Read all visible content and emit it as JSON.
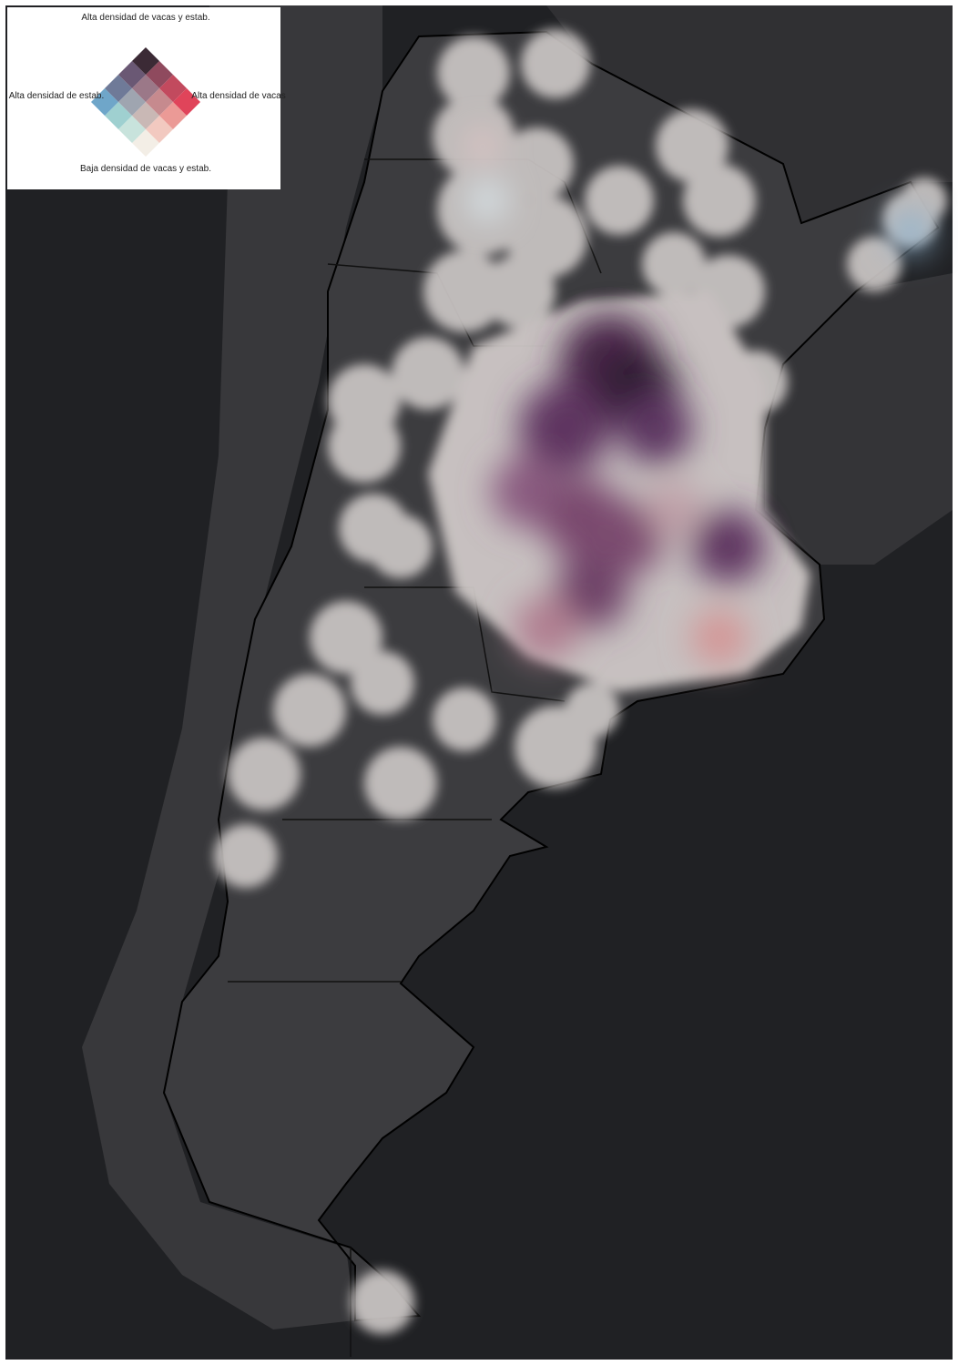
{
  "legend": {
    "top": "Alta densidad de vacas y estab.",
    "left": "Alta densidad de estab.",
    "right": "Alta densidad de vacas",
    "bottom": "Baja densidad de vacas y estab.",
    "grid": [
      [
        "#f3eee6",
        "#f2c9c0",
        "#eb9a96",
        "#e0445a"
      ],
      [
        "#c8e3dc",
        "#c9b8b5",
        "#c68a8e",
        "#c24a5e"
      ],
      [
        "#9fd0d0",
        "#9fa5b0",
        "#9b7888",
        "#8f4a5e"
      ],
      [
        "#6fa6c9",
        "#6f7a98",
        "#6a5874",
        "#3b2a35"
      ]
    ]
  }
}
